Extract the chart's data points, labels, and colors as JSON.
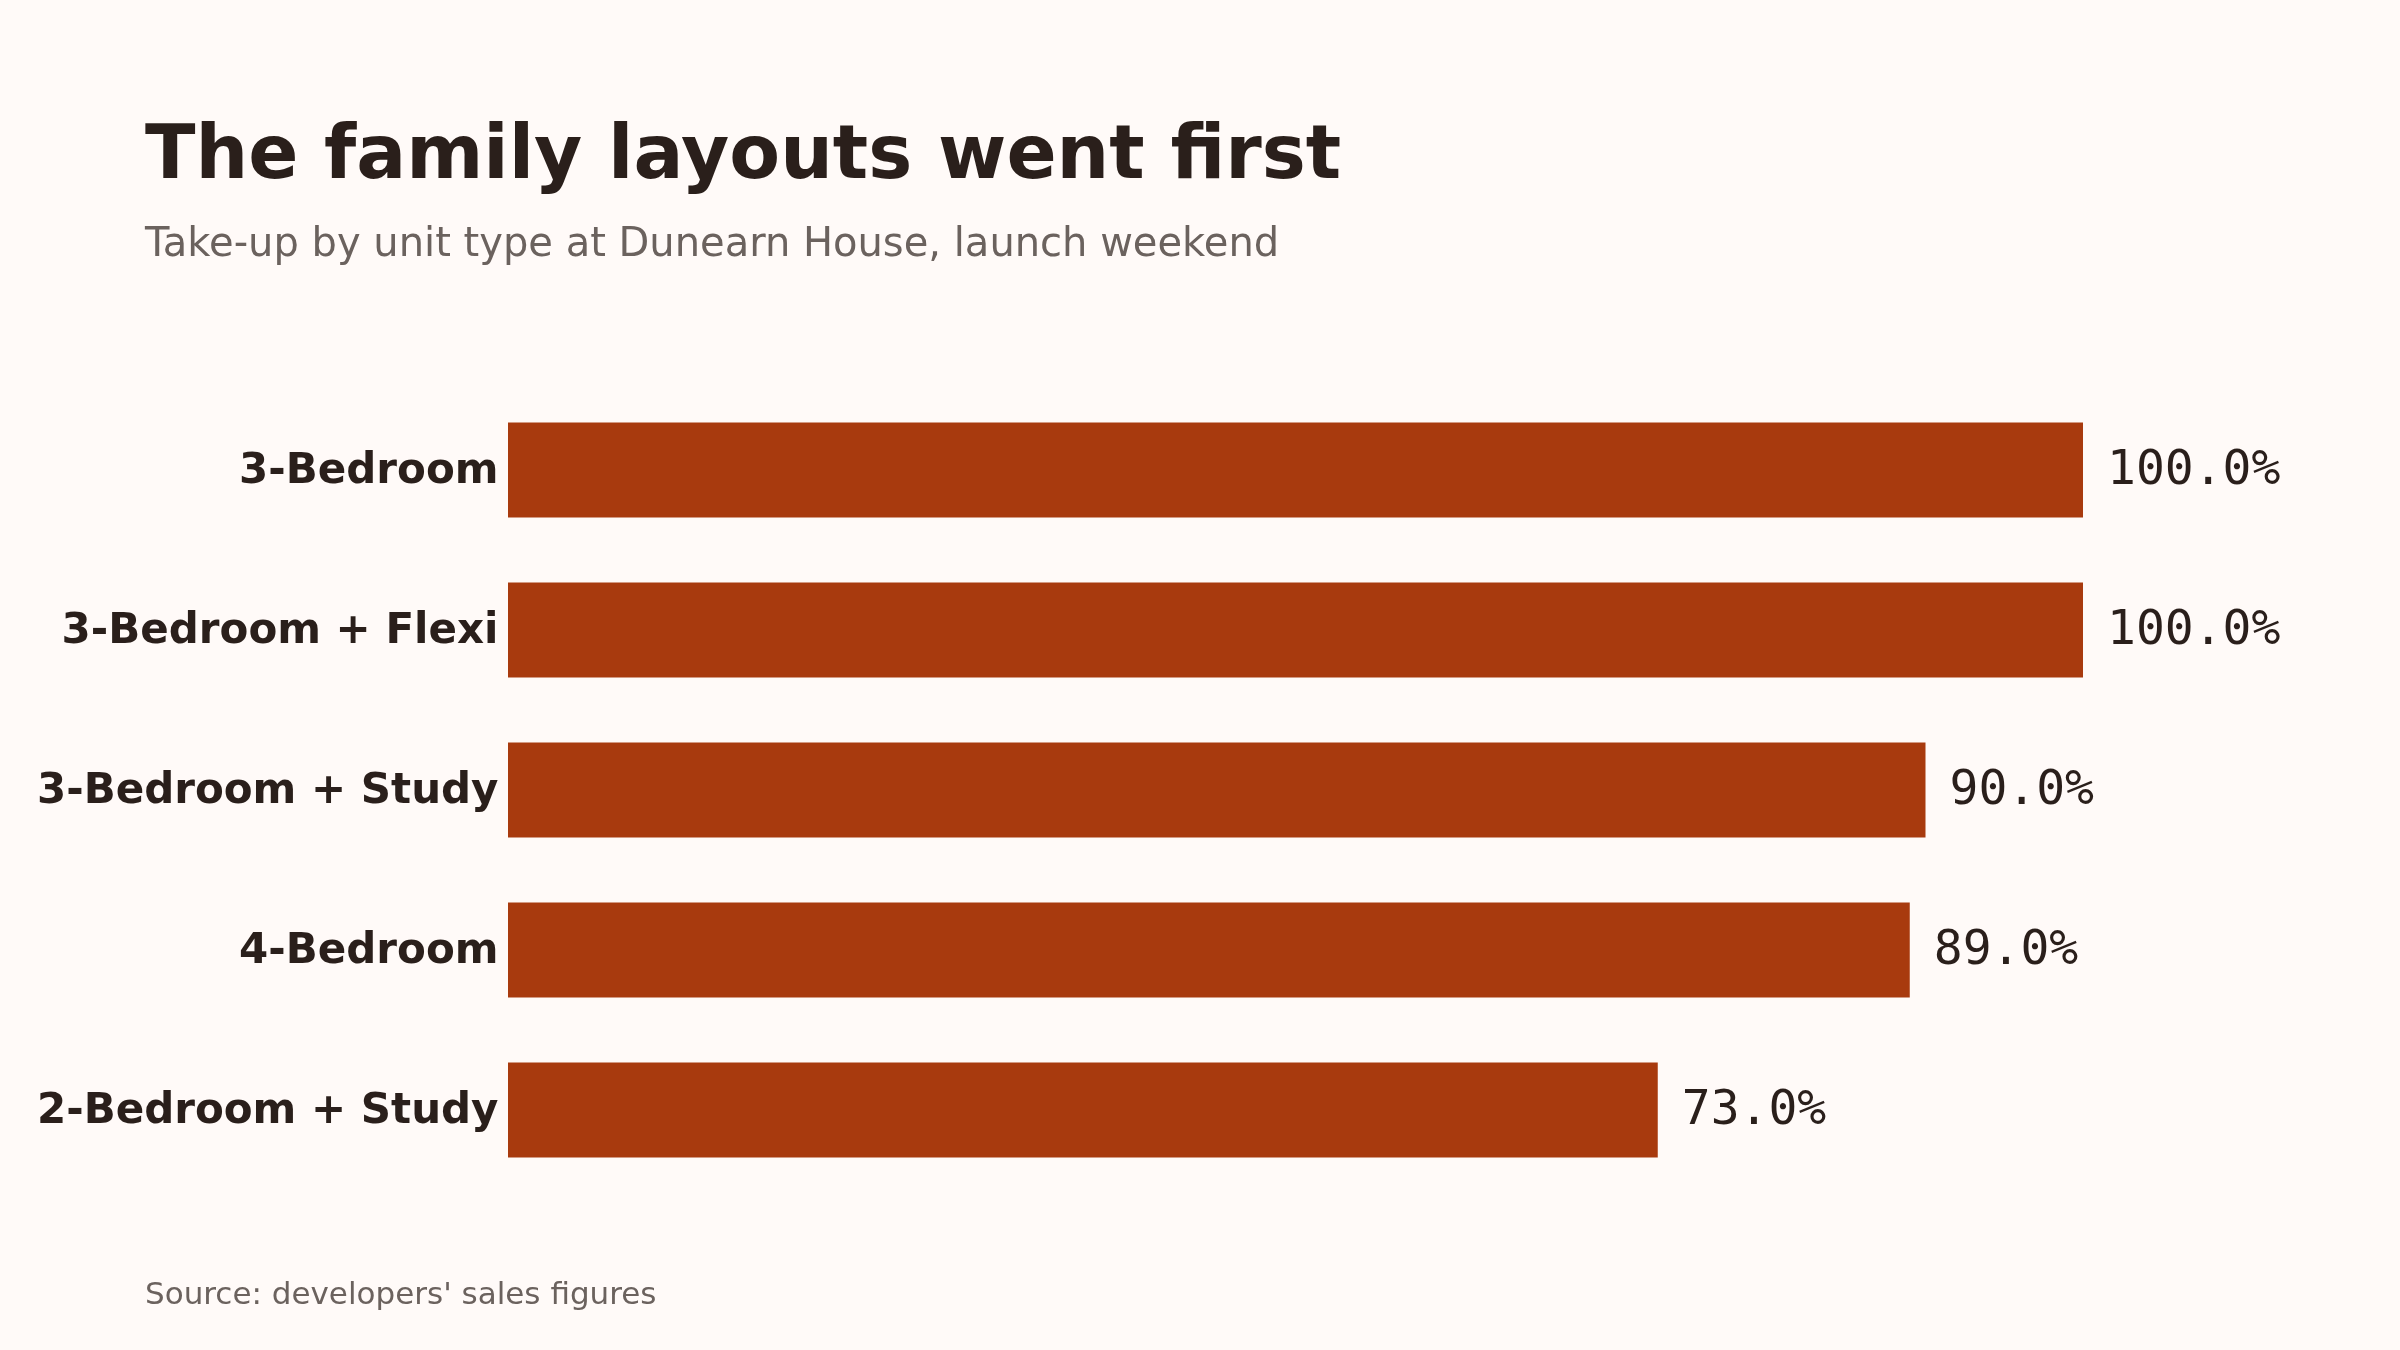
{
  "chart_data": {
    "type": "bar",
    "orientation": "horizontal",
    "title": "The family layouts went first",
    "subtitle": "Take-up by unit type at Dunearn House, launch weekend",
    "categories": [
      "3-Bedroom",
      "3-Bedroom + Flexi",
      "3-Bedroom + Study",
      "4-Bedroom",
      "2-Bedroom + Study"
    ],
    "values": [
      100.0,
      100.0,
      90.0,
      89.0,
      73.0
    ],
    "value_labels": [
      "100.0%",
      "100.0%",
      "90.0%",
      "89.0%",
      "73.0%"
    ],
    "color": "#a83a0e",
    "annotations": [
      "Source: developers' sales figures"
    ]
  }
}
